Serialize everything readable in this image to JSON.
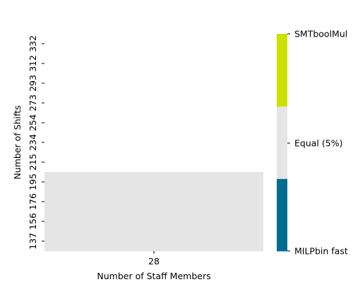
{
  "chart_data": {
    "type": "heatmap",
    "title": "",
    "xlabel": "Number of Staff Members",
    "ylabel": "Number of Shifts",
    "x_categories": [
      "28"
    ],
    "y_categories": [
      "137",
      "156",
      "176",
      "195",
      "215",
      "234",
      "254",
      "273",
      "293",
      "312",
      "332"
    ],
    "cells": [
      {
        "x": "28",
        "y": "137",
        "label": "Equal (5%)"
      },
      {
        "x": "28",
        "y": "156",
        "label": "Equal (5%)"
      },
      {
        "x": "28",
        "y": "176",
        "label": "Equal (5%)"
      },
      {
        "x": "28",
        "y": "195",
        "label": "Equal (5%)"
      }
    ],
    "grid": false,
    "legend": {
      "type": "colorbar",
      "placement": "right",
      "entries": [
        {
          "label": "MILPbin fast",
          "color": "#006d8f"
        },
        {
          "label": "Equal (5%)",
          "color": "#e5e5e5"
        },
        {
          "label": "SMTboolMul",
          "color": "#cce100"
        }
      ]
    }
  }
}
